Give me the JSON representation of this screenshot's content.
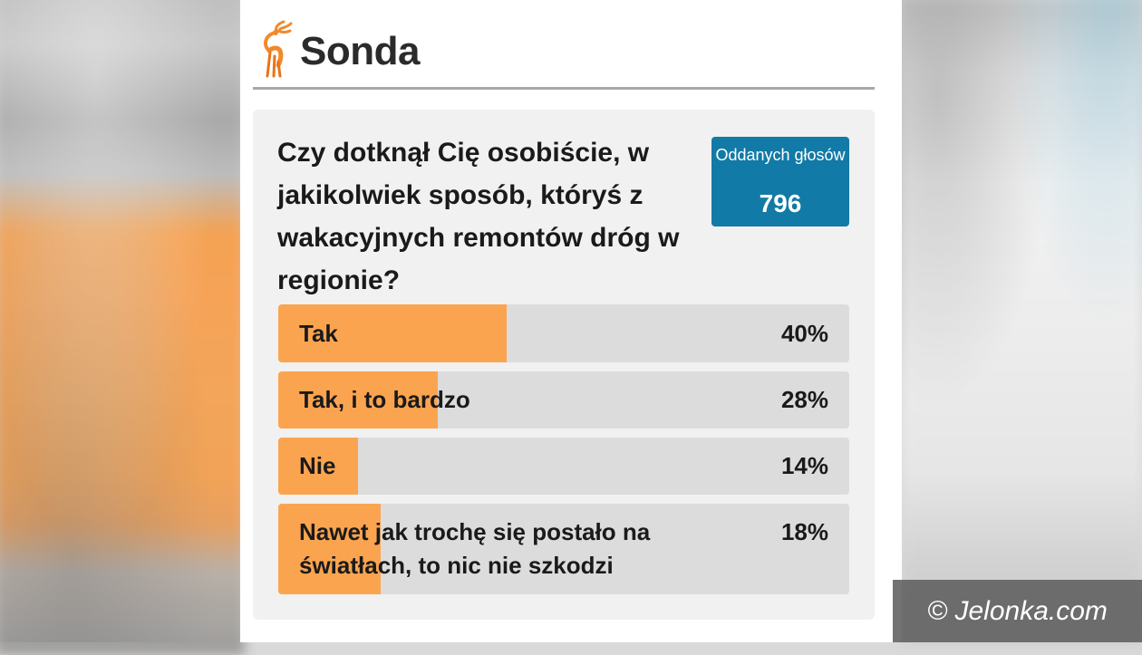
{
  "header": {
    "title": "Sonda"
  },
  "poll": {
    "question": "Czy dotknął Cię osobiście, w jakikolwiek sposób, któryś z wakacyjnych remontów dróg w regionie?",
    "votes_label": "Oddanych głosów",
    "votes_count": "796",
    "answers": [
      {
        "label": "Tak",
        "percent_text": "40%",
        "percent": 40
      },
      {
        "label": "Tak, i to bardzo",
        "percent_text": "28%",
        "percent": 28
      },
      {
        "label": "Nie",
        "percent_text": "14%",
        "percent": 14
      },
      {
        "label": "Nawet jak trochę się postało na światłach, to nic nie szkodzi",
        "percent_text": "18%",
        "percent": 18
      }
    ]
  },
  "watermark": {
    "text": "© Jelonka.com"
  },
  "colors": {
    "accent_orange": "#fba450",
    "votes_blue": "#127aa6",
    "bar_track": "#dcdcdc"
  },
  "icons": {
    "logo": "deer-logo-icon"
  }
}
